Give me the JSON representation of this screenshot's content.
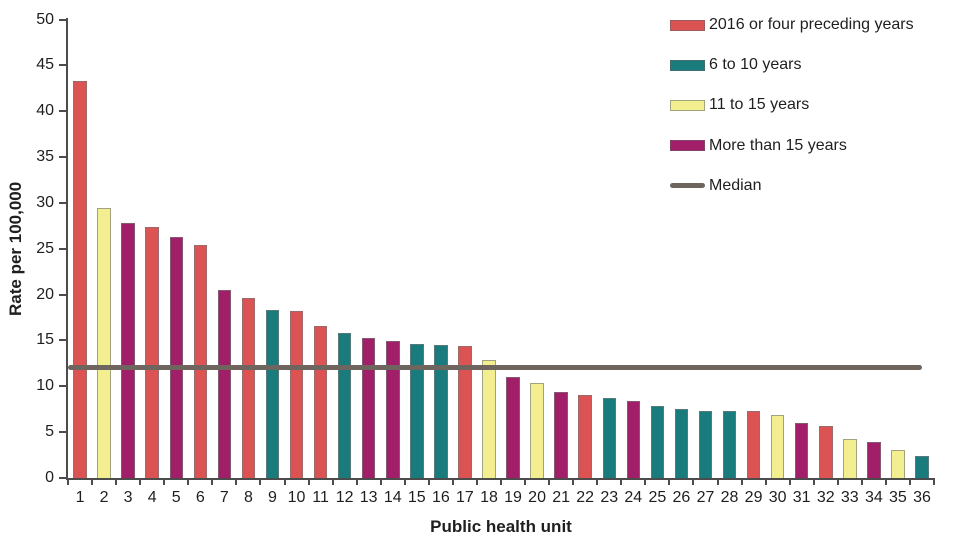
{
  "chart_data": {
    "type": "bar",
    "title": "",
    "xlabel": "Public health unit",
    "ylabel": "Rate per 100,000",
    "ylim": [
      0,
      50
    ],
    "ytick_interval": 5,
    "y_tick_labels": [
      "0",
      "5",
      "10",
      "15",
      "20",
      "25",
      "30",
      "35",
      "40",
      "45",
      "50"
    ],
    "grid": false,
    "legend_position": "upper-right",
    "legend": [
      {
        "label": "2016 or four preceding years",
        "color": "#DB5352"
      },
      {
        "label": "6 to 10 years",
        "color": "#197B7B"
      },
      {
        "label": "11 to 15 years",
        "color": "#F3EF90"
      },
      {
        "label": "More than 15 years",
        "color": "#A11E68"
      }
    ],
    "median_line": {
      "label": "Median",
      "value": 12.1,
      "color": "#6E665E"
    },
    "categories": [
      "1",
      "2",
      "3",
      "4",
      "5",
      "6",
      "7",
      "8",
      "9",
      "10",
      "11",
      "12",
      "13",
      "14",
      "15",
      "16",
      "17",
      "18",
      "19",
      "20",
      "21",
      "22",
      "23",
      "24",
      "25",
      "26",
      "27",
      "28",
      "29",
      "30",
      "31",
      "32",
      "33",
      "34",
      "35",
      "36"
    ],
    "values": [
      43.3,
      29.4,
      27.8,
      27.4,
      26.3,
      25.4,
      20.5,
      19.6,
      18.3,
      18.2,
      16.6,
      15.8,
      15.3,
      14.9,
      14.6,
      14.5,
      14.4,
      12.9,
      11.0,
      10.4,
      9.4,
      9.0,
      8.7,
      8.4,
      7.8,
      7.5,
      7.3,
      7.3,
      7.3,
      6.9,
      6.0,
      5.7,
      4.3,
      3.9,
      3.1,
      2.4
    ],
    "bar_series_index": [
      0,
      2,
      3,
      0,
      3,
      0,
      3,
      0,
      1,
      0,
      0,
      1,
      3,
      3,
      1,
      1,
      0,
      2,
      3,
      2,
      3,
      0,
      1,
      3,
      1,
      1,
      1,
      1,
      0,
      2,
      3,
      0,
      2,
      3,
      2,
      1
    ],
    "colors": {
      "axis": "#4c4c4c",
      "text": "#1f1f1f"
    }
  }
}
